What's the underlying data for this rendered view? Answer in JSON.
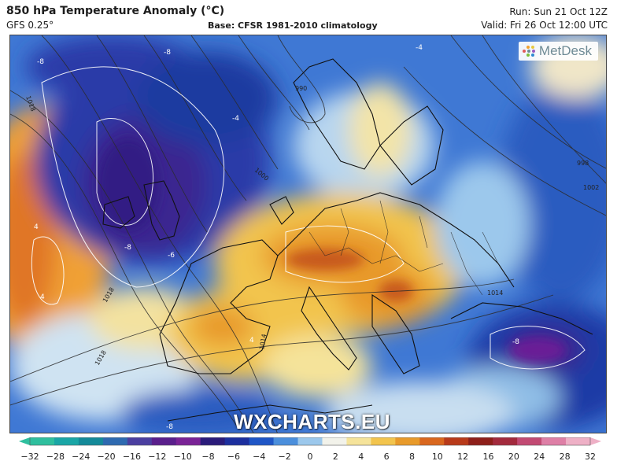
{
  "header": {
    "title": "850 hPa Temperature Anomaly (°C)",
    "model": "GFS 0.25°",
    "base": "Base: CFSR 1981-2010 climatology",
    "run": "Run: Sun 21 Oct 12Z",
    "valid": "Valid: Fri 26 Oct 12:00 UTC"
  },
  "logo": {
    "text": "MetDesk",
    "icon": "metdesk-dots-logo"
  },
  "watermark": "WXCHARTS.EU",
  "colorbar": {
    "ticks": [
      "−32",
      "−28",
      "−24",
      "−20",
      "−16",
      "−12",
      "−10",
      "−8",
      "−6",
      "−4",
      "−2",
      "0",
      "2",
      "4",
      "6",
      "8",
      "10",
      "12",
      "16",
      "20",
      "24",
      "28",
      "32"
    ],
    "colors": [
      "#2fbf9e",
      "#1aa6a6",
      "#148a99",
      "#2e6ab0",
      "#4b3fa0",
      "#5a1f8c",
      "#7a2396",
      "#2a1b7a",
      "#1c2f9e",
      "#1f56c6",
      "#4b8fdc",
      "#9cc8ec",
      "#f2f2ea",
      "#f5e39a",
      "#f2c44d",
      "#e89a2a",
      "#d9671e",
      "#b83a1a",
      "#8e1f1a",
      "#a32a3d",
      "#c24a73",
      "#de7fa6",
      "#eeb0c6"
    ]
  },
  "isobars": [
    "1018",
    "1014",
    "1018",
    "1000",
    "998",
    "1002",
    "990",
    "1014",
    "1018"
  ],
  "anomaly_labels": [
    "-8",
    "-8",
    "-8",
    "-6",
    "-4",
    "-4",
    "4",
    "4",
    "-8",
    "-8",
    "4"
  ],
  "colors": {
    "frame": "#444444",
    "land_border": "#111111",
    "isobar": "#333333",
    "contour": "#ffffff"
  }
}
